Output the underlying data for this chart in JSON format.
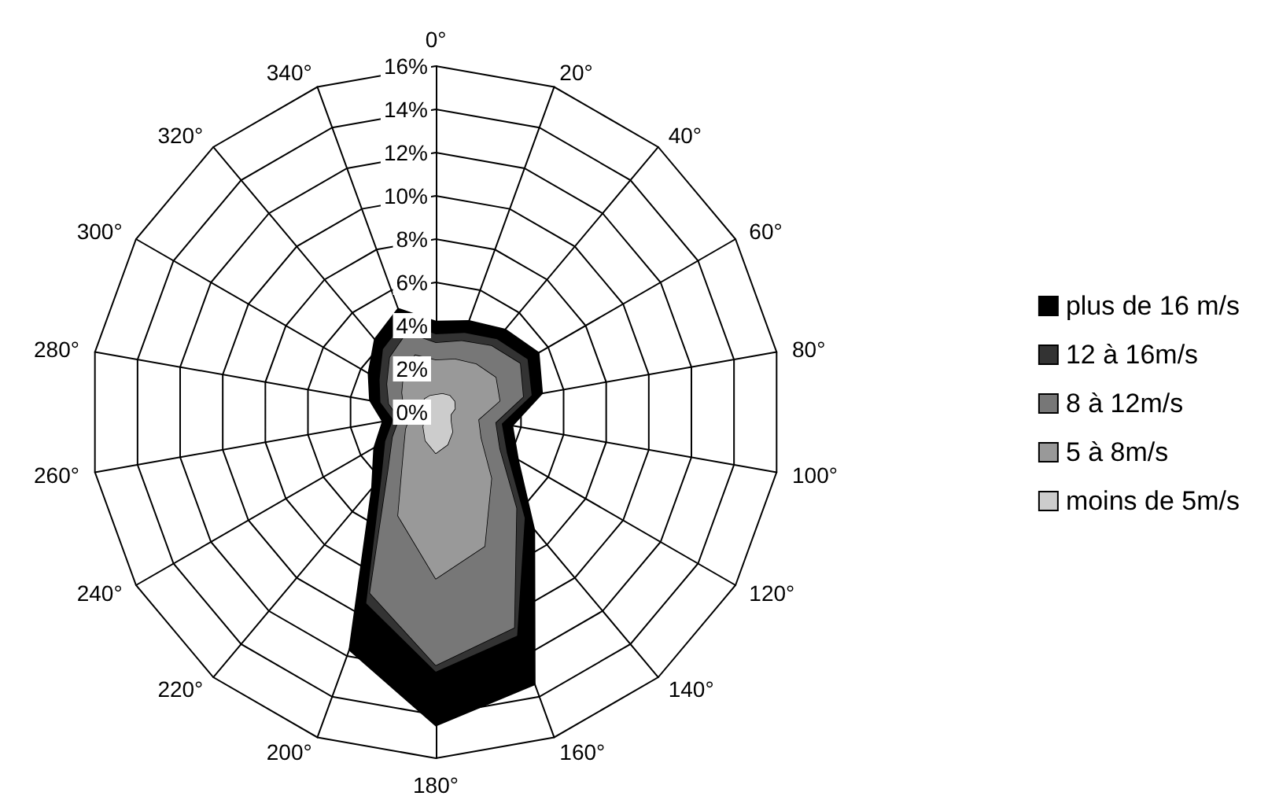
{
  "chart_data": {
    "type": "radar",
    "categories": [
      "0°",
      "20°",
      "40°",
      "60°",
      "80°",
      "100°",
      "120°",
      "140°",
      "160°",
      "180°",
      "200°",
      "220°",
      "240°",
      "260°",
      "280°",
      "300°",
      "320°",
      "340°"
    ],
    "series": [
      {
        "name": "plus de 16 m/s",
        "color": "#000000",
        "values": [
          4.2,
          4.5,
          5.0,
          5.5,
          5.0,
          3.6,
          4.4,
          7.1,
          13.4,
          14.5,
          11.7,
          4.6,
          3.3,
          2.5,
          3.1,
          3.6,
          4.4,
          5.1
        ]
      },
      {
        "name": "12 à 16m/s",
        "color": "#333333",
        "values": [
          3.6,
          3.9,
          4.4,
          4.9,
          4.5,
          3.1,
          3.8,
          6.4,
          11.0,
          12.0,
          9.4,
          3.9,
          2.7,
          2.0,
          2.6,
          3.0,
          3.8,
          4.4
        ]
      },
      {
        "name": "8 à 12m/s",
        "color": "#777777",
        "values": [
          3.2,
          3.5,
          4.0,
          4.5,
          4.1,
          2.8,
          3.4,
          5.8,
          10.6,
          11.7,
          8.9,
          3.4,
          2.3,
          1.7,
          2.2,
          2.6,
          3.3,
          3.9
        ]
      },
      {
        "name": "5 à 8m/s",
        "color": "#999999",
        "values": [
          2.4,
          2.6,
          2.9,
          3.2,
          3.0,
          2.0,
          2.4,
          4.0,
          6.6,
          7.7,
          5.1,
          2.3,
          1.6,
          1.2,
          1.5,
          1.8,
          2.3,
          2.8
        ]
      },
      {
        "name": "moins de 5m/s",
        "color": "#cccccc",
        "values": [
          0.8,
          0.9,
          1.0,
          1.0,
          0.9,
          0.7,
          0.8,
          1.2,
          1.6,
          1.9,
          1.4,
          0.9,
          0.6,
          0.5,
          0.6,
          0.7,
          0.8,
          0.8
        ]
      }
    ],
    "ylim": [
      0,
      16
    ],
    "yticks": [
      {
        "value": 0,
        "label": "0%"
      },
      {
        "value": 2,
        "label": "2%"
      },
      {
        "value": 4,
        "label": "4%"
      },
      {
        "value": 6,
        "label": "6%"
      },
      {
        "value": 8,
        "label": "8%"
      },
      {
        "value": 10,
        "label": "10%"
      },
      {
        "value": 12,
        "label": "12%"
      },
      {
        "value": 14,
        "label": "14%"
      },
      {
        "value": 16,
        "label": "16%"
      }
    ],
    "grid": true,
    "legend": "right"
  }
}
